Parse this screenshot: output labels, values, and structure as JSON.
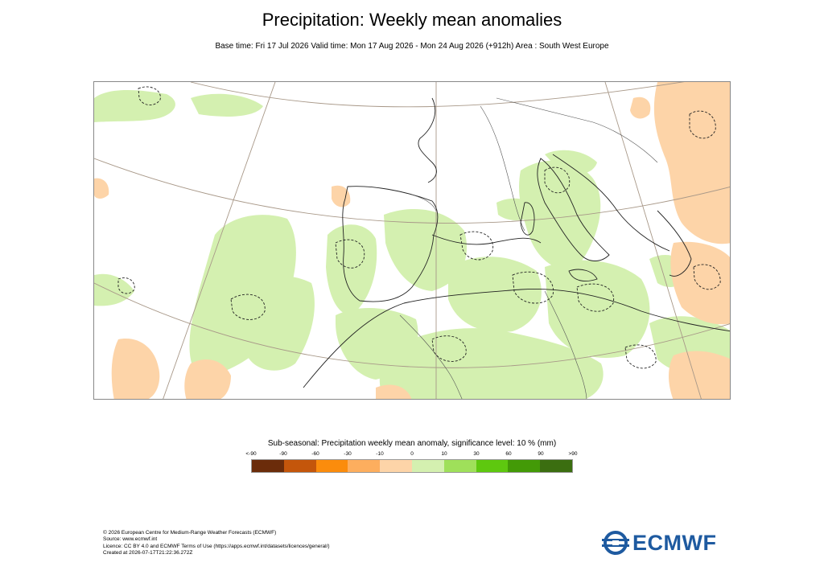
{
  "title": "Precipitation: Weekly mean anomalies",
  "subtitle": "Base time: Fri 17 Jul 2026 Valid time: Mon 17 Aug 2026 - Mon 24 Aug 2026 (+912h) Area : South West Europe",
  "legend": {
    "title": "Sub-seasonal: Precipitation weekly mean anomaly, significance level: 10 % (mm)",
    "ticks": [
      "<-90",
      "-90",
      "-60",
      "-30",
      "-10",
      "0",
      "10",
      "30",
      "60",
      "90",
      ">90"
    ],
    "colors": [
      "#6b2c0a",
      "#c4560b",
      "#fb8c0c",
      "#fdae5e",
      "#fdd4a8",
      "#d4f0b0",
      "#9fe05a",
      "#5ec80f",
      "#439a07",
      "#3b6e10"
    ]
  },
  "footer": {
    "line1": "© 2026 European Centre for Medium-Range Weather Forecasts (ECMWF)",
    "line2": "Source: www.ecmwf.int",
    "line3": "Licence: CC BY 4.0 and ECMWF Terms of Use (https://apps.ecmwf.int/datasets/licences/general/)",
    "line4": "Created at 2026-07-17T21:22:36.272Z"
  },
  "logo": {
    "text": "ECMWF",
    "icon": "ecmwf-logo-icon",
    "color": "#1e5aa0"
  },
  "map": {
    "region": "South West Europe",
    "positive_color": "#d4f0b0",
    "negative_color": "#fdd4a8",
    "line_color": "#a89888"
  }
}
